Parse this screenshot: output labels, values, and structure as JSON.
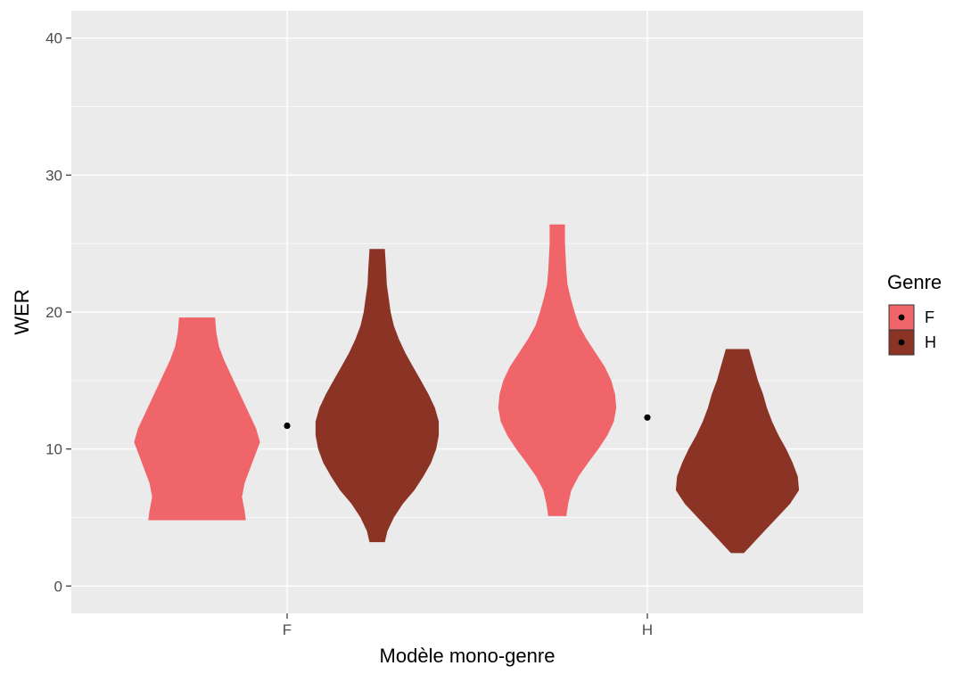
{
  "chart_data": {
    "type": "violin",
    "title": "",
    "xlabel": "Modèle mono-genre",
    "ylabel": "WER",
    "categories": [
      "F",
      "H"
    ],
    "ylim": [
      -2,
      42
    ],
    "yticks": [
      0,
      10,
      20,
      30,
      40
    ],
    "grid": true,
    "legend": {
      "title": "Genre",
      "position": "right",
      "entries": [
        {
          "label": "F",
          "color": "#F0656A"
        },
        {
          "label": "H",
          "color": "#8B3426"
        }
      ]
    },
    "colors": {
      "F": "#F0656A",
      "H": "#8B3426",
      "panel": "#EBEBEB",
      "grid": "#FFFFFF"
    },
    "series": [
      {
        "name": "F",
        "violins": [
          {
            "category": "F",
            "min": 4.8,
            "max": 19.6,
            "profile": [
              [
                4.8,
                0.76
              ],
              [
                5.5,
                0.74
              ],
              [
                6.5,
                0.7
              ],
              [
                7.5,
                0.74
              ],
              [
                8.5,
                0.82
              ],
              [
                9.5,
                0.9
              ],
              [
                10.5,
                0.98
              ],
              [
                11.5,
                0.92
              ],
              [
                12.5,
                0.82
              ],
              [
                13.5,
                0.72
              ],
              [
                14.5,
                0.62
              ],
              [
                15.5,
                0.52
              ],
              [
                16.5,
                0.42
              ],
              [
                17.5,
                0.34
              ],
              [
                18.5,
                0.3
              ],
              [
                19.6,
                0.28
              ]
            ]
          },
          {
            "category": "H",
            "min": 5.1,
            "max": 26.4,
            "profile": [
              [
                5.1,
                0.14
              ],
              [
                6.0,
                0.17
              ],
              [
                7.0,
                0.22
              ],
              [
                8.0,
                0.33
              ],
              [
                9.0,
                0.48
              ],
              [
                10.0,
                0.64
              ],
              [
                11.0,
                0.78
              ],
              [
                12.0,
                0.88
              ],
              [
                13.0,
                0.92
              ],
              [
                14.0,
                0.9
              ],
              [
                15.0,
                0.84
              ],
              [
                16.0,
                0.74
              ],
              [
                17.0,
                0.6
              ],
              [
                18.0,
                0.46
              ],
              [
                19.0,
                0.34
              ],
              [
                20.0,
                0.27
              ],
              [
                21.0,
                0.21
              ],
              [
                22.0,
                0.16
              ],
              [
                23.0,
                0.14
              ],
              [
                24.0,
                0.13
              ],
              [
                25.0,
                0.12
              ],
              [
                26.4,
                0.12
              ]
            ]
          }
        ]
      },
      {
        "name": "H",
        "violins": [
          {
            "category": "F",
            "min": 3.2,
            "max": 24.6,
            "profile": [
              [
                3.2,
                0.12
              ],
              [
                4.0,
                0.16
              ],
              [
                5.0,
                0.26
              ],
              [
                6.0,
                0.4
              ],
              [
                7.0,
                0.58
              ],
              [
                8.0,
                0.72
              ],
              [
                9.0,
                0.84
              ],
              [
                10.0,
                0.92
              ],
              [
                11.0,
                0.96
              ],
              [
                12.0,
                0.96
              ],
              [
                13.0,
                0.9
              ],
              [
                14.0,
                0.8
              ],
              [
                15.0,
                0.68
              ],
              [
                16.0,
                0.56
              ],
              [
                17.0,
                0.44
              ],
              [
                18.0,
                0.34
              ],
              [
                19.0,
                0.26
              ],
              [
                20.0,
                0.21
              ],
              [
                21.0,
                0.18
              ],
              [
                22.0,
                0.15
              ],
              [
                23.0,
                0.14
              ],
              [
                24.6,
                0.12
              ]
            ]
          },
          {
            "category": "H",
            "min": 2.4,
            "max": 17.3,
            "profile": [
              [
                2.4,
                0.1
              ],
              [
                3.0,
                0.22
              ],
              [
                4.0,
                0.42
              ],
              [
                5.0,
                0.62
              ],
              [
                6.0,
                0.82
              ],
              [
                7.0,
                0.96
              ],
              [
                8.0,
                0.94
              ],
              [
                9.0,
                0.86
              ],
              [
                10.0,
                0.76
              ],
              [
                11.0,
                0.64
              ],
              [
                12.0,
                0.54
              ],
              [
                13.0,
                0.46
              ],
              [
                14.0,
                0.4
              ],
              [
                15.0,
                0.32
              ],
              [
                16.0,
                0.26
              ],
              [
                17.3,
                0.18
              ]
            ]
          }
        ]
      }
    ],
    "points": [
      {
        "category": "F",
        "y": 11.7
      },
      {
        "category": "H",
        "y": 12.3
      }
    ]
  }
}
